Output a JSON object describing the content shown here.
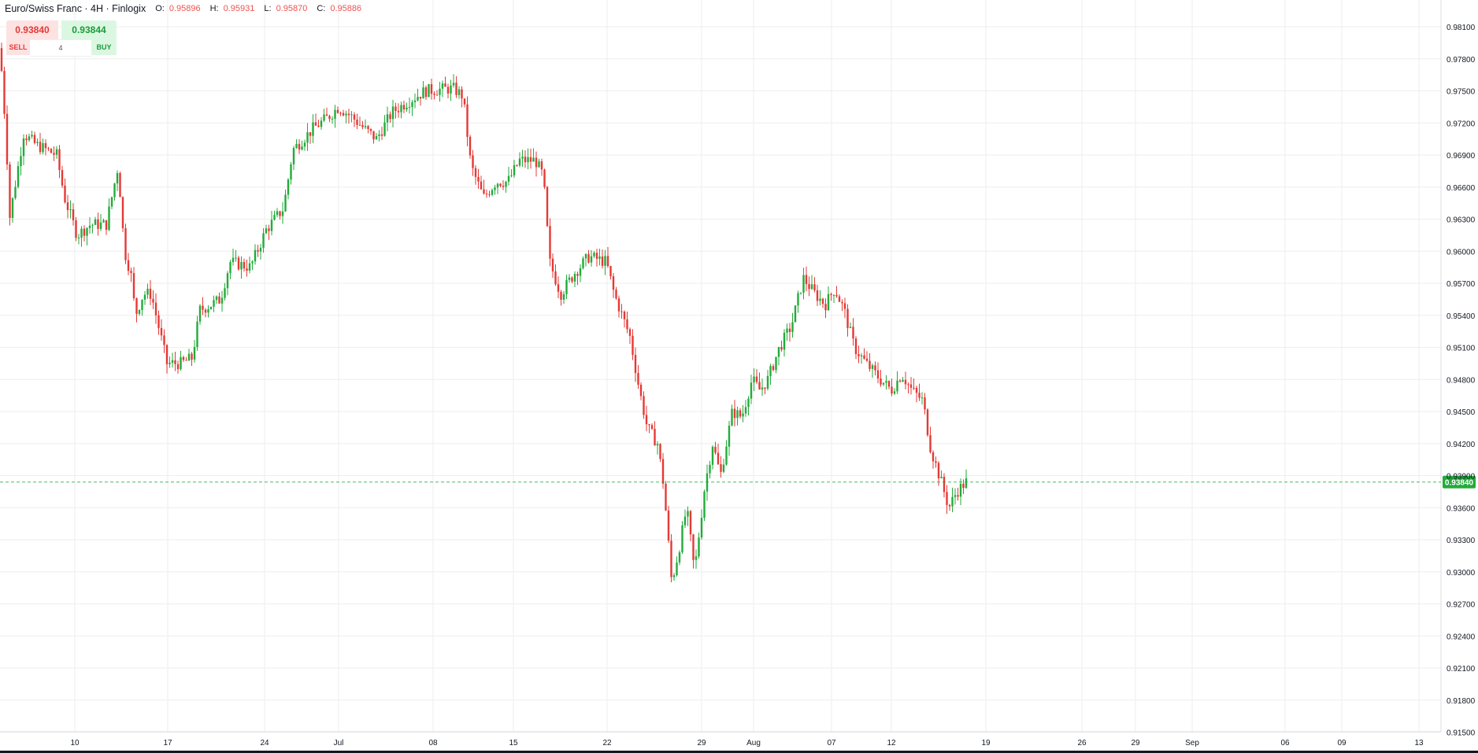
{
  "header": {
    "title": "Euro/Swiss Franc · 4H · Finlogix",
    "open_label": "O:",
    "open": "0.95896",
    "high_label": "H:",
    "high": "0.95931",
    "low_label": "L:",
    "low": "0.95870",
    "close_label": "C:",
    "close": "0.95886"
  },
  "trade_panel": {
    "sell_price": "0.93840",
    "buy_price": "0.93844",
    "sell_label": "SELL",
    "buy_label": "BUY",
    "quantity": "4"
  },
  "colors": {
    "up": "#22ab3a",
    "down": "#e53935",
    "grid": "#eeeeee",
    "axis_text": "#131722",
    "price_line": "#22ab3a"
  },
  "chart_data": {
    "type": "candlestick",
    "title": "Euro/Swiss Franc",
    "interval": "4H",
    "y_axis": {
      "position": "right",
      "ticks": [
        0.981,
        0.978,
        0.975,
        0.972,
        0.969,
        0.966,
        0.963,
        0.96,
        0.957,
        0.954,
        0.951,
        0.948,
        0.945,
        0.942,
        0.939,
        0.936,
        0.933,
        0.93,
        0.927,
        0.924,
        0.921,
        0.918,
        0.915
      ],
      "tick_labels": [
        "0.98100",
        "0.97800",
        "0.97500",
        "0.97200",
        "0.96900",
        "0.96600",
        "0.96300",
        "0.96000",
        "0.95700",
        "0.95400",
        "0.95100",
        "0.94800",
        "0.94500",
        "0.94200",
        "0.93900",
        "0.93600",
        "0.93300",
        "0.93000",
        "0.92700",
        "0.92400",
        "0.92100",
        "0.91800",
        "0.91500"
      ],
      "ylim": [
        0.9146,
        0.9826
      ]
    },
    "x_axis": {
      "tick_labels": [
        "10",
        "17",
        "24",
        "Jul",
        "08",
        "15",
        "22",
        "29",
        "Aug",
        "07",
        "12",
        "19",
        "26",
        "29",
        "Sep",
        "06",
        "09",
        "13"
      ]
    },
    "last_price": 0.9384,
    "last_price_label": "0.93840",
    "grid": true,
    "candles_description": "approx. 4H candles from early June to late August",
    "path": [
      [
        0,
        0.979
      ],
      [
        8,
        0.9705
      ],
      [
        12,
        0.963
      ],
      [
        30,
        0.971
      ],
      [
        45,
        0.97
      ],
      [
        72,
        0.969
      ],
      [
        82,
        0.965
      ],
      [
        98,
        0.9615
      ],
      [
        115,
        0.9625
      ],
      [
        135,
        0.9625
      ],
      [
        150,
        0.968
      ],
      [
        158,
        0.96
      ],
      [
        166,
        0.958
      ],
      [
        172,
        0.954
      ],
      [
        182,
        0.956
      ],
      [
        192,
        0.956
      ],
      [
        212,
        0.9495
      ],
      [
        230,
        0.9495
      ],
      [
        244,
        0.95
      ],
      [
        254,
        0.9545
      ],
      [
        268,
        0.955
      ],
      [
        280,
        0.9555
      ],
      [
        292,
        0.959
      ],
      [
        318,
        0.9585
      ],
      [
        338,
        0.962
      ],
      [
        360,
        0.964
      ],
      [
        372,
        0.9695
      ],
      [
        398,
        0.9715
      ],
      [
        416,
        0.9725
      ],
      [
        430,
        0.9735
      ],
      [
        448,
        0.9725
      ],
      [
        462,
        0.9715
      ],
      [
        478,
        0.9705
      ],
      [
        498,
        0.973
      ],
      [
        518,
        0.974
      ],
      [
        540,
        0.975
      ],
      [
        568,
        0.9752
      ],
      [
        576,
        0.9752
      ],
      [
        588,
        0.9745
      ],
      [
        598,
        0.968
      ],
      [
        614,
        0.965
      ],
      [
        630,
        0.9665
      ],
      [
        645,
        0.9665
      ],
      [
        660,
        0.9685
      ],
      [
        680,
        0.9685
      ],
      [
        690,
        0.967
      ],
      [
        698,
        0.959
      ],
      [
        712,
        0.956
      ],
      [
        730,
        0.958
      ],
      [
        748,
        0.9595
      ],
      [
        770,
        0.959
      ],
      [
        780,
        0.956
      ],
      [
        790,
        0.954
      ],
      [
        800,
        0.952
      ],
      [
        812,
        0.947
      ],
      [
        822,
        0.9435
      ],
      [
        835,
        0.942
      ],
      [
        843,
        0.938
      ],
      [
        853,
        0.929
      ],
      [
        862,
        0.932
      ],
      [
        872,
        0.936
      ],
      [
        882,
        0.93
      ],
      [
        895,
        0.938
      ],
      [
        905,
        0.942
      ],
      [
        915,
        0.939
      ],
      [
        930,
        0.945
      ],
      [
        942,
        0.9445
      ],
      [
        955,
        0.948
      ],
      [
        965,
        0.947
      ],
      [
        975,
        0.948
      ],
      [
        990,
        0.951
      ],
      [
        1005,
        0.953
      ],
      [
        1020,
        0.9575
      ],
      [
        1035,
        0.956
      ],
      [
        1048,
        0.955
      ],
      [
        1060,
        0.9565
      ],
      [
        1072,
        0.9545
      ],
      [
        1085,
        0.951
      ],
      [
        1100,
        0.9495
      ],
      [
        1118,
        0.948
      ],
      [
        1132,
        0.947
      ],
      [
        1145,
        0.9485
      ],
      [
        1158,
        0.947
      ],
      [
        1172,
        0.946
      ],
      [
        1182,
        0.9415
      ],
      [
        1195,
        0.9385
      ],
      [
        1205,
        0.936
      ],
      [
        1215,
        0.9375
      ],
      [
        1228,
        0.9385
      ]
    ]
  }
}
